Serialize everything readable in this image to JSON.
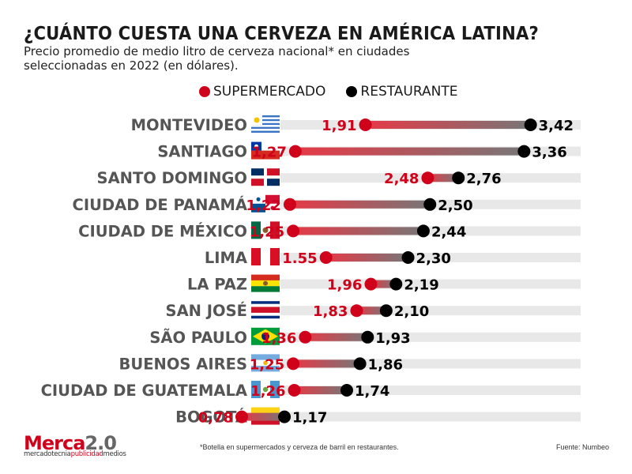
{
  "title": "¿CUÁNTO CUESTA UNA CERVEZA EN AMÉRICA LATINA?",
  "subtitle": "Precio promedio de medio litro de cerveza nacional* en ciudades seleccionadas en 2022 (en dólares).",
  "legend": {
    "supermarket_label": "SUPERMERCADO",
    "restaurant_label": "RESTAURANTE"
  },
  "footnote": "*Botella en supermercados y cerveza de barril en restaurantes.",
  "source": "Fuente: Numbeo",
  "logo": {
    "main_a": "Merca",
    "main_b": "2.0",
    "tag_a": "mercadotecnia",
    "tag_b": "publicidad",
    "tag_c": "medios"
  },
  "colors": {
    "supermarket": "#d0021b",
    "restaurant": "#000000",
    "track": "#e8e8e8",
    "label": "#555555"
  },
  "chart_data": {
    "type": "dumbbell",
    "xlim": [
      0,
      3.6
    ],
    "series": [
      {
        "name": "SUPERMERCADO",
        "color": "#d0021b"
      },
      {
        "name": "RESTAURANTE",
        "color": "#000000"
      }
    ],
    "rows": [
      {
        "city": "MONTEVIDEO",
        "flag": "uruguay",
        "supermarket": 1.91,
        "restaurant": 3.42,
        "supermarket_label": "1,91",
        "restaurant_label": "3,42"
      },
      {
        "city": "SANTIAGO",
        "flag": "chile",
        "supermarket": 1.27,
        "restaurant": 3.36,
        "supermarket_label": "1,27",
        "restaurant_label": "3,36"
      },
      {
        "city": "SANTO DOMINGO",
        "flag": "dominican-republic",
        "supermarket": 2.48,
        "restaurant": 2.76,
        "supermarket_label": "2,48",
        "restaurant_label": "2,76"
      },
      {
        "city": "CIUDAD DE PANAMÁ",
        "flag": "panama",
        "supermarket": 1.22,
        "restaurant": 2.5,
        "supermarket_label": "1,22",
        "restaurant_label": "2,50"
      },
      {
        "city": "CIUDAD DE MÉXICO",
        "flag": "mexico",
        "supermarket": 1.25,
        "restaurant": 2.44,
        "supermarket_label": "1,25",
        "restaurant_label": "2,44"
      },
      {
        "city": "LIMA",
        "flag": "peru",
        "supermarket": 1.55,
        "restaurant": 2.3,
        "supermarket_label": "1.55",
        "restaurant_label": "2,30"
      },
      {
        "city": "LA PAZ",
        "flag": "bolivia",
        "supermarket": 1.96,
        "restaurant": 2.19,
        "supermarket_label": "1,96",
        "restaurant_label": "2,19"
      },
      {
        "city": "SAN JOSÉ",
        "flag": "costa-rica",
        "supermarket": 1.83,
        "restaurant": 2.1,
        "supermarket_label": "1,83",
        "restaurant_label": "2,10"
      },
      {
        "city": "SÃO PAULO",
        "flag": "brazil",
        "supermarket": 1.36,
        "restaurant": 1.93,
        "supermarket_label": "1,36",
        "restaurant_label": "1,93"
      },
      {
        "city": "BUENOS AIRES",
        "flag": "argentina",
        "supermarket": 1.25,
        "restaurant": 1.86,
        "supermarket_label": "1,25",
        "restaurant_label": "1,86"
      },
      {
        "city": "CIUDAD DE GUATEMALA",
        "flag": "guatemala",
        "supermarket": 1.26,
        "restaurant": 1.74,
        "supermarket_label": "1,26",
        "restaurant_label": "1,74"
      },
      {
        "city": "BOGOTÁ",
        "flag": "colombia",
        "supermarket": 0.78,
        "restaurant": 1.17,
        "supermarket_label": "0,78",
        "restaurant_label": "1,17"
      }
    ]
  }
}
